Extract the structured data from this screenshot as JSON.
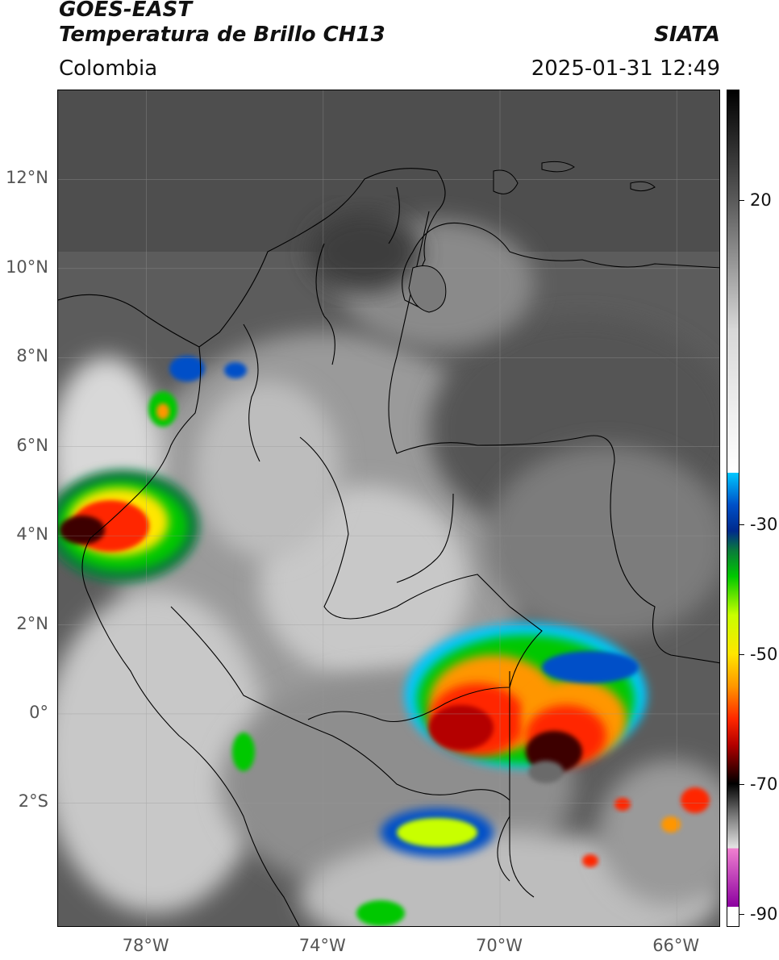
{
  "header": {
    "satellite": "GOES-EAST",
    "product": "Temperatura de Brillo CH13",
    "region": "Colombia",
    "source": "SIATA",
    "datetime": "2025-01-31 12:49"
  },
  "map": {
    "lat_range": [
      -4.8,
      14.0
    ],
    "lon_range": [
      -80.0,
      -65.0
    ],
    "lat_labels": [
      {
        "lat": 12,
        "text": "12°N"
      },
      {
        "lat": 10,
        "text": "10°N"
      },
      {
        "lat": 8,
        "text": "8°N"
      },
      {
        "lat": 6,
        "text": "6°N"
      },
      {
        "lat": 4,
        "text": "4°N"
      },
      {
        "lat": 2,
        "text": "2°N"
      },
      {
        "lat": 0,
        "text": "0°"
      },
      {
        "lat": -2,
        "text": "2°S"
      }
    ],
    "lon_labels": [
      {
        "lon": -78,
        "text": "78°W"
      },
      {
        "lon": -74,
        "text": "74°W"
      },
      {
        "lon": -70,
        "text": "70°W"
      },
      {
        "lon": -66,
        "text": "66°W"
      }
    ],
    "colors": {
      "ocean": "#5a5a5a",
      "land_warm": "#7a7a7a",
      "cloud_low": "#bdbdbd",
      "cloud_high": "#e6e6e6",
      "border": "#000000"
    }
  },
  "colorbar": {
    "range": [
      -92,
      37
    ],
    "ticks": [
      {
        "value": 20,
        "text": "20"
      },
      {
        "value": -30,
        "text": "-30"
      },
      {
        "value": -50,
        "text": "-50"
      },
      {
        "value": -70,
        "text": "-70"
      },
      {
        "value": -90,
        "text": "-90"
      }
    ],
    "stops": [
      {
        "value": 37,
        "color": "#000000"
      },
      {
        "value": 20,
        "color": "#5a5a5a"
      },
      {
        "value": 0,
        "color": "#d8d8d8"
      },
      {
        "value": -22,
        "color": "#ffffff"
      },
      {
        "value": -22.01,
        "color": "#00c8ff"
      },
      {
        "value": -27,
        "color": "#0050c8"
      },
      {
        "value": -31,
        "color": "#002a8c"
      },
      {
        "value": -34,
        "color": "#0a7a3c"
      },
      {
        "value": -38,
        "color": "#00c800"
      },
      {
        "value": -44,
        "color": "#c8ff00"
      },
      {
        "value": -50,
        "color": "#ffe600"
      },
      {
        "value": -55,
        "color": "#ff9600"
      },
      {
        "value": -60,
        "color": "#ff2800"
      },
      {
        "value": -64,
        "color": "#b40000"
      },
      {
        "value": -68,
        "color": "#3c0000"
      },
      {
        "value": -70,
        "color": "#000000"
      },
      {
        "value": -75,
        "color": "#7a7a7a"
      },
      {
        "value": -80,
        "color": "#e6e6e6"
      },
      {
        "value": -80.01,
        "color": "#f080d0"
      },
      {
        "value": -89,
        "color": "#8c00a0"
      },
      {
        "value": -89.01,
        "color": "#ffffff"
      },
      {
        "value": -92,
        "color": "#ffffff"
      }
    ]
  }
}
